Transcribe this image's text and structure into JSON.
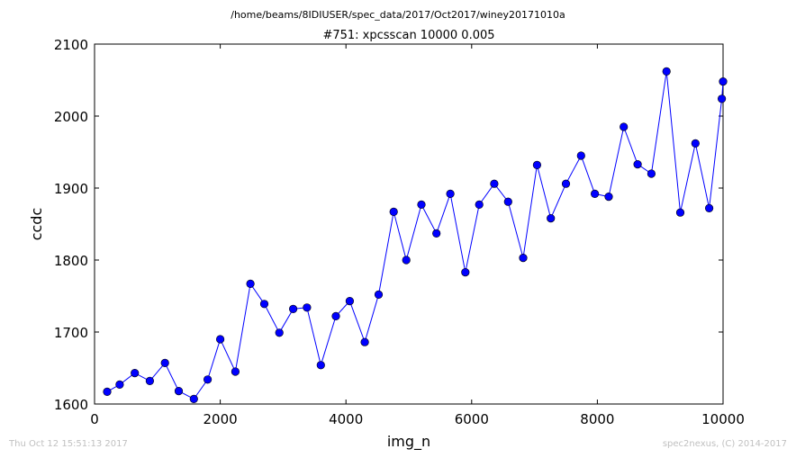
{
  "header": {
    "file_title": "/home/beams/8IDIUSER/spec_data/2017/Oct2017/winey20171010a"
  },
  "footer": {
    "timestamp": "Thu Oct 12 15:51:13 2017",
    "credit": "spec2nexus, (C) 2014-2017"
  },
  "chart_data": {
    "type": "line",
    "title": "#751: xpcsscan 10000 0.005",
    "xlabel": "img_n",
    "ylabel": "ccdc",
    "xlim": [
      0,
      10000
    ],
    "ylim": [
      1600,
      2100
    ],
    "xticks": [
      0,
      2000,
      4000,
      6000,
      8000,
      10000
    ],
    "yticks": [
      1600,
      1700,
      1800,
      1900,
      2000,
      2100
    ],
    "grid": false,
    "marker": "circle",
    "line_color": "#0000ff",
    "marker_color": "#0000ff",
    "x": [
      200,
      400,
      640,
      880,
      1120,
      1340,
      1580,
      1800,
      2000,
      2240,
      2480,
      2700,
      2940,
      3160,
      3380,
      3600,
      3840,
      4060,
      4300,
      4520,
      4760,
      4960,
      5200,
      5440,
      5660,
      5900,
      6120,
      6360,
      6580,
      6820,
      7040,
      7260,
      7500,
      7740,
      7960,
      8180,
      8420,
      8640,
      8860,
      9100,
      9320,
      9560,
      9780,
      9980,
      10000
    ],
    "y": [
      1617,
      1627,
      1643,
      1632,
      1657,
      1618,
      1607,
      1634,
      1690,
      1645,
      1767,
      1739,
      1699,
      1732,
      1734,
      1654,
      1722,
      1743,
      1686,
      1752,
      1867,
      1800,
      1877,
      1837,
      1892,
      1783,
      1877,
      1906,
      1881,
      1803,
      1932,
      1858,
      1906,
      1945,
      1892,
      1888,
      1985,
      1933,
      1920,
      2062,
      1866,
      1962,
      1872,
      2024,
      2048
    ]
  }
}
